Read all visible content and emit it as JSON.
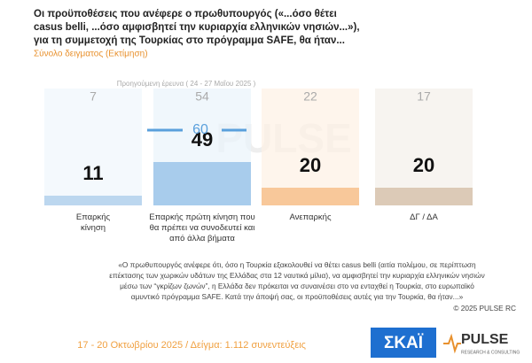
{
  "chart_data": {
    "type": "bar",
    "title": [
      "Οι προϋποθέσεις που ανέφερε ο πρωθυπουργός («...όσο θέτει",
      "casus belli,  ...όσο αμφισβητεί την κυριαρχία ελληνικών νησιών...»),",
      "για τη συμμετοχή της Τουρκίας στο πρόγραμμα SAFE, θα ήταν..."
    ],
    "subtitle": "Σύνολο δειγματος   (Εκτίμηση)",
    "categories": [
      "Επαρκής κίνηση",
      "Επαρκής πρώτη κίνηση που θα πρέπει να συνοδευτεί και από άλλα βήματα",
      "Ανεπαρκής",
      "ΔΓ / ΔΑ"
    ],
    "values": [
      11,
      49,
      20,
      20
    ],
    "colors": [
      "#bcd7ef",
      "#a8ccec",
      "#f8c89a",
      "#dccab7"
    ],
    "previous": {
      "name": "Προηγούμενη έρευνα  ( 24 - 27 Μαΐου 2025 )",
      "values": [
        7,
        54,
        22,
        17
      ]
    },
    "markers": [
      null,
      60,
      null,
      null
    ],
    "ylim": [
      0,
      100
    ],
    "note": [
      "«Ο πρωθυπουργός ανέφερε ότι, όσο η Τουρκία εξακολουθεί να θέτει casus belli (αιτία πολέμου, σε περίπτωση",
      "επέκτασης των χωρικών υδάτων της Ελλάδας στα 12 ναυτικά μίλια), να αμφισβητεί την κυριαρχία ελληνικών νησιών",
      "μέσω των “γκρίζων ζωνών”, η Ελλάδα δεν πρόκειται να συναινέσει στο να ενταχθεί η Τουρκία, στο ευρωπαϊκό",
      "αμυντικό πρόγραμμα SAFE. Κατά την άποψή σας, οι προϋποθέσεις αυτές για την Τουρκία, θα ήταν...»"
    ],
    "copyright": "©  2025  PULSE RC",
    "footer": "17 - 20 Οκτωβρίου 2025  /  Δείγμα:  1.112 συνεντεύξεις",
    "logos": [
      "ΣΚΑΪ",
      "PULSE",
      "RESEARCH & CONSULTING"
    ]
  }
}
